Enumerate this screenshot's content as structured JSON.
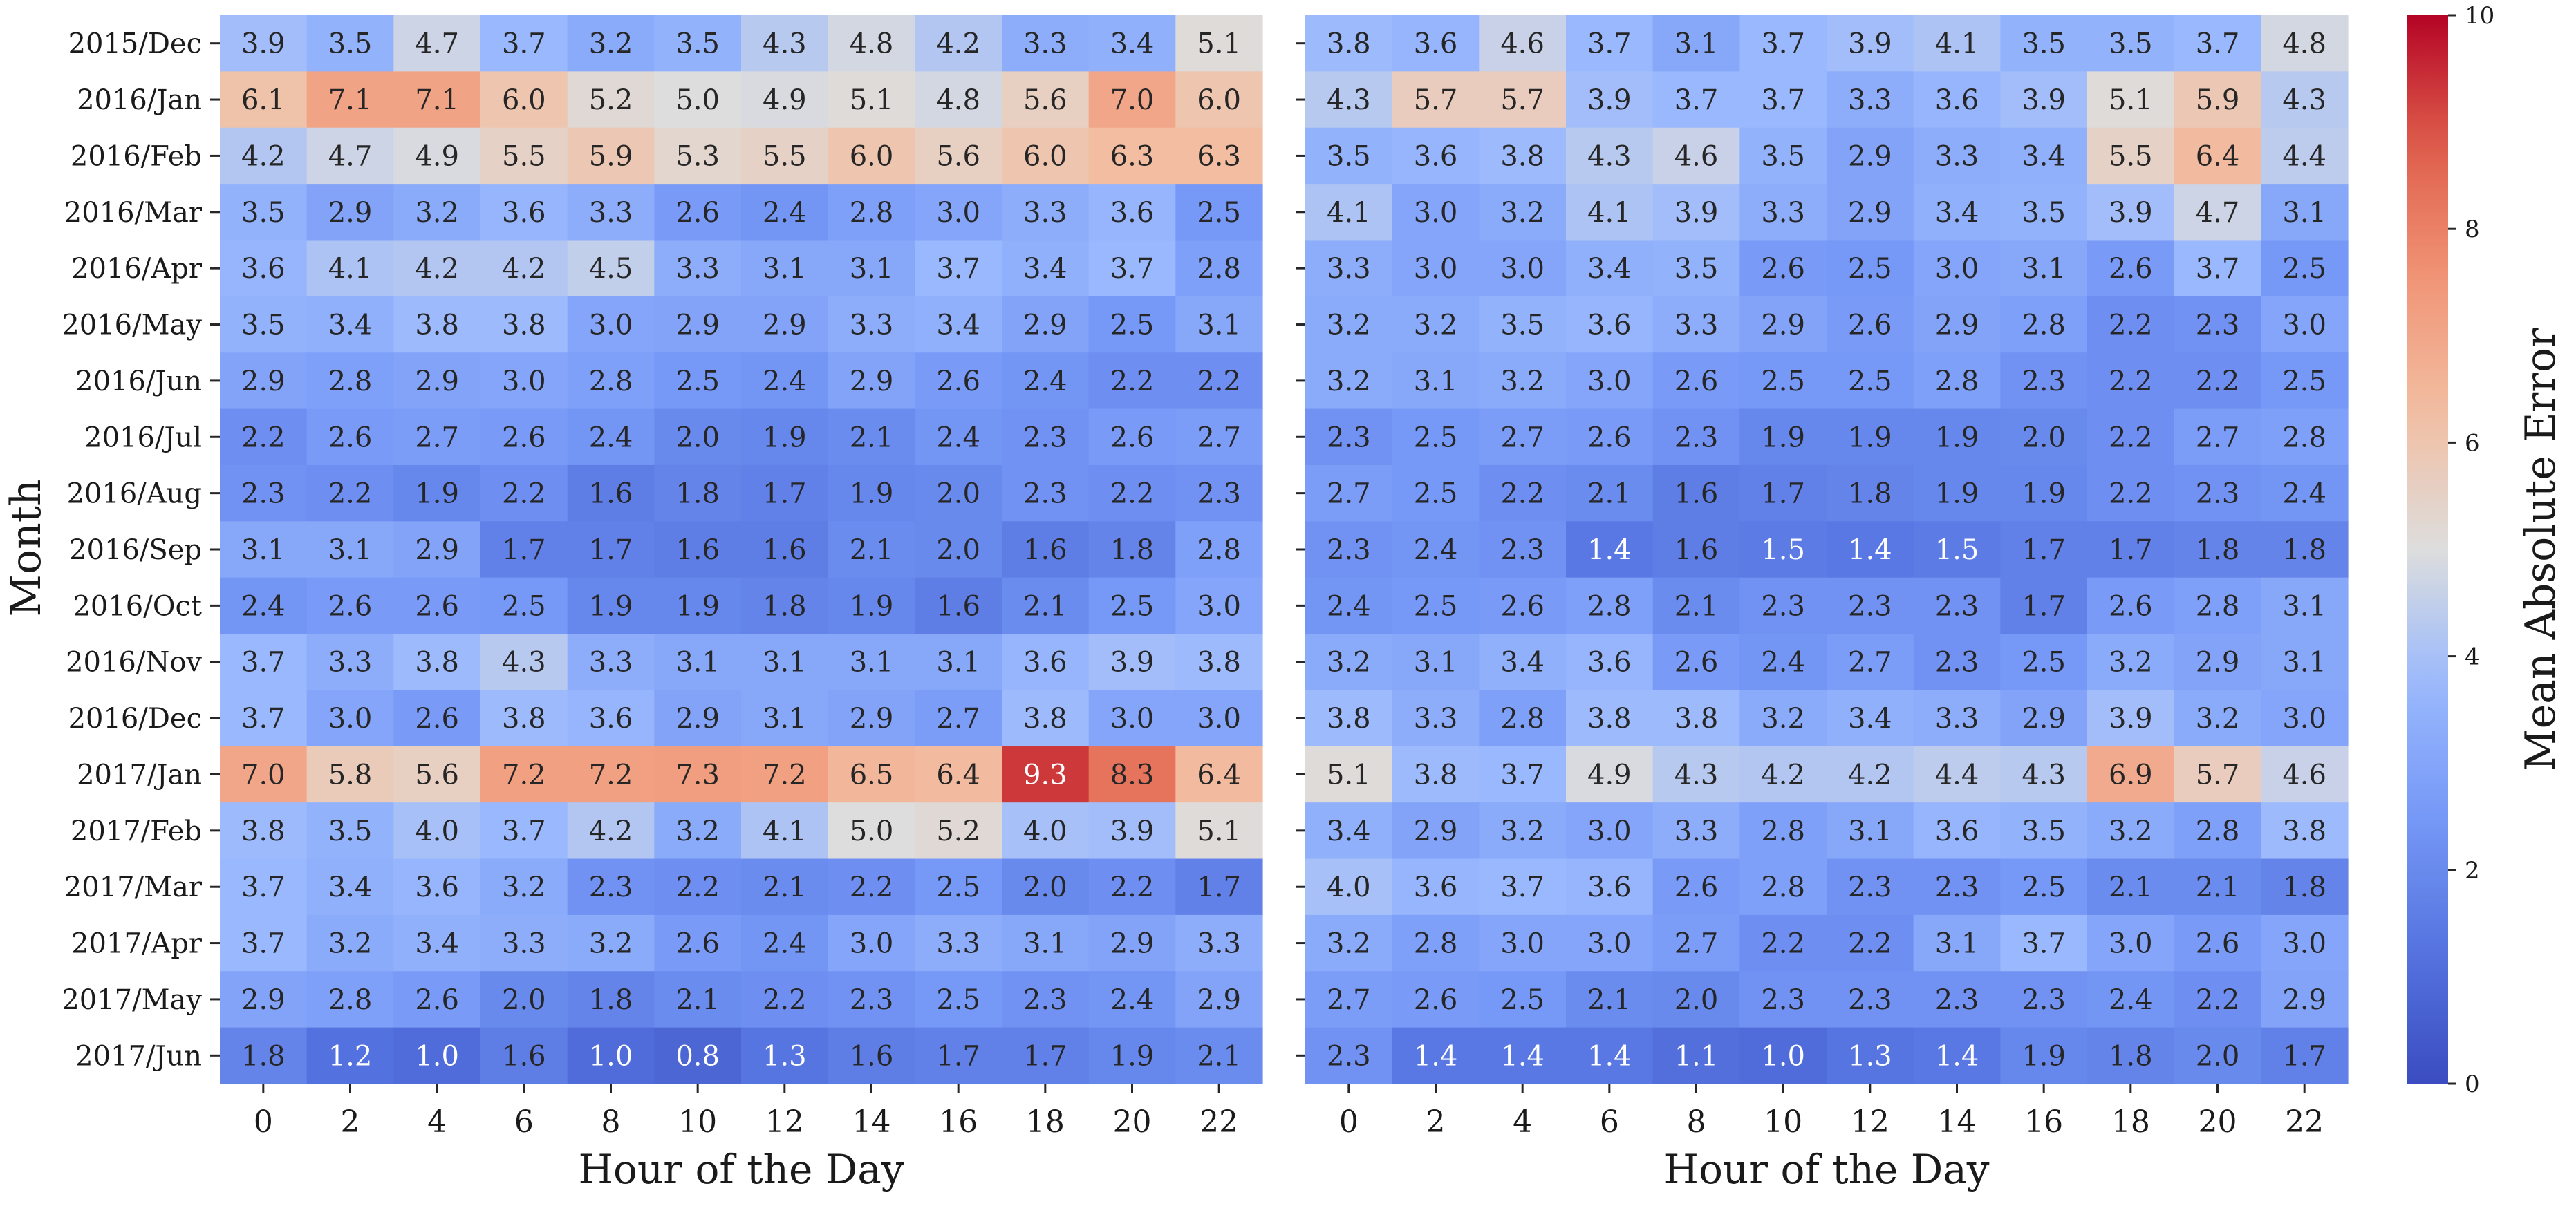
{
  "chart_data": {
    "type": "heatmap",
    "ylabel": "Month",
    "rows": [
      "2015/Dec",
      "2016/Jan",
      "2016/Feb",
      "2016/Mar",
      "2016/Apr",
      "2016/May",
      "2016/Jun",
      "2016/Jul",
      "2016/Aug",
      "2016/Sep",
      "2016/Oct",
      "2016/Nov",
      "2016/Dec",
      "2017/Jan",
      "2017/Feb",
      "2017/Mar",
      "2017/Apr",
      "2017/May",
      "2017/Jun"
    ],
    "columns": [
      "0",
      "2",
      "4",
      "6",
      "8",
      "10",
      "12",
      "14",
      "16",
      "18",
      "20",
      "22"
    ],
    "panels": [
      {
        "xlabel": "Hour of the Day",
        "values": [
          [
            3.9,
            3.5,
            4.7,
            3.7,
            3.2,
            3.5,
            4.3,
            4.8,
            4.2,
            3.3,
            3.4,
            5.1
          ],
          [
            6.1,
            7.1,
            7.1,
            6.0,
            5.2,
            5.0,
            4.9,
            5.1,
            4.8,
            5.6,
            7.0,
            6.0
          ],
          [
            4.2,
            4.7,
            4.9,
            5.5,
            5.9,
            5.3,
            5.5,
            6.0,
            5.6,
            6.0,
            6.3,
            6.3
          ],
          [
            3.5,
            2.9,
            3.2,
            3.6,
            3.3,
            2.6,
            2.4,
            2.8,
            3.0,
            3.3,
            3.6,
            2.5
          ],
          [
            3.6,
            4.1,
            4.2,
            4.2,
            4.5,
            3.3,
            3.1,
            3.1,
            3.7,
            3.4,
            3.7,
            2.8
          ],
          [
            3.5,
            3.4,
            3.8,
            3.8,
            3.0,
            2.9,
            2.9,
            3.3,
            3.4,
            2.9,
            2.5,
            3.1
          ],
          [
            2.9,
            2.8,
            2.9,
            3.0,
            2.8,
            2.5,
            2.4,
            2.9,
            2.6,
            2.4,
            2.2,
            2.2
          ],
          [
            2.2,
            2.6,
            2.7,
            2.6,
            2.4,
            2.0,
            1.9,
            2.1,
            2.4,
            2.3,
            2.6,
            2.7
          ],
          [
            2.3,
            2.2,
            1.9,
            2.2,
            1.6,
            1.8,
            1.7,
            1.9,
            2.0,
            2.3,
            2.2,
            2.3
          ],
          [
            3.1,
            3.1,
            2.9,
            1.7,
            1.7,
            1.6,
            1.6,
            2.1,
            2.0,
            1.6,
            1.8,
            2.8
          ],
          [
            2.4,
            2.6,
            2.6,
            2.5,
            1.9,
            1.9,
            1.8,
            1.9,
            1.6,
            2.1,
            2.5,
            3.0
          ],
          [
            3.7,
            3.3,
            3.8,
            4.3,
            3.3,
            3.1,
            3.1,
            3.1,
            3.1,
            3.6,
            3.9,
            3.8
          ],
          [
            3.7,
            3.0,
            2.6,
            3.8,
            3.6,
            2.9,
            3.1,
            2.9,
            2.7,
            3.8,
            3.0,
            3.0
          ],
          [
            7.0,
            5.8,
            5.6,
            7.2,
            7.2,
            7.3,
            7.2,
            6.5,
            6.4,
            9.3,
            8.3,
            6.4
          ],
          [
            3.8,
            3.5,
            4.0,
            3.7,
            4.2,
            3.2,
            4.1,
            5.0,
            5.2,
            4.0,
            3.9,
            5.1
          ],
          [
            3.7,
            3.4,
            3.6,
            3.2,
            2.3,
            2.2,
            2.1,
            2.2,
            2.5,
            2.0,
            2.2,
            1.7
          ],
          [
            3.7,
            3.2,
            3.4,
            3.3,
            3.2,
            2.6,
            2.4,
            3.0,
            3.3,
            3.1,
            2.9,
            3.3
          ],
          [
            2.9,
            2.8,
            2.6,
            2.0,
            1.8,
            2.1,
            2.2,
            2.3,
            2.5,
            2.3,
            2.4,
            2.9
          ],
          [
            1.8,
            1.2,
            1.0,
            1.6,
            1.0,
            0.8,
            1.3,
            1.6,
            1.7,
            1.7,
            1.9,
            2.1
          ]
        ]
      },
      {
        "xlabel": "Hour of the Day",
        "values": [
          [
            3.8,
            3.6,
            4.6,
            3.7,
            3.1,
            3.7,
            3.9,
            4.1,
            3.5,
            3.5,
            3.7,
            4.8
          ],
          [
            4.3,
            5.7,
            5.7,
            3.9,
            3.7,
            3.7,
            3.3,
            3.6,
            3.9,
            5.1,
            5.9,
            4.3
          ],
          [
            3.5,
            3.6,
            3.8,
            4.3,
            4.6,
            3.5,
            2.9,
            3.3,
            3.4,
            5.5,
            6.4,
            4.4
          ],
          [
            4.1,
            3.0,
            3.2,
            4.1,
            3.9,
            3.3,
            2.9,
            3.4,
            3.5,
            3.9,
            4.7,
            3.1
          ],
          [
            3.3,
            3.0,
            3.0,
            3.4,
            3.5,
            2.6,
            2.5,
            3.0,
            3.1,
            2.6,
            3.7,
            2.5
          ],
          [
            3.2,
            3.2,
            3.5,
            3.6,
            3.3,
            2.9,
            2.6,
            2.9,
            2.8,
            2.2,
            2.3,
            3.0
          ],
          [
            3.2,
            3.1,
            3.2,
            3.0,
            2.6,
            2.5,
            2.5,
            2.8,
            2.3,
            2.2,
            2.2,
            2.5
          ],
          [
            2.3,
            2.5,
            2.7,
            2.6,
            2.3,
            1.9,
            1.9,
            1.9,
            2.0,
            2.2,
            2.7,
            2.8
          ],
          [
            2.7,
            2.5,
            2.2,
            2.1,
            1.6,
            1.7,
            1.8,
            1.9,
            1.9,
            2.2,
            2.3,
            2.4
          ],
          [
            2.3,
            2.4,
            2.3,
            1.4,
            1.6,
            1.5,
            1.4,
            1.5,
            1.7,
            1.7,
            1.8,
            1.8
          ],
          [
            2.4,
            2.5,
            2.6,
            2.8,
            2.1,
            2.3,
            2.3,
            2.3,
            1.7,
            2.6,
            2.8,
            3.1
          ],
          [
            3.2,
            3.1,
            3.4,
            3.6,
            2.6,
            2.4,
            2.7,
            2.3,
            2.5,
            3.2,
            2.9,
            3.1
          ],
          [
            3.8,
            3.3,
            2.8,
            3.8,
            3.8,
            3.2,
            3.4,
            3.3,
            2.9,
            3.9,
            3.2,
            3.0
          ],
          [
            5.1,
            3.8,
            3.7,
            4.9,
            4.3,
            4.2,
            4.2,
            4.4,
            4.3,
            6.9,
            5.7,
            4.6
          ],
          [
            3.4,
            2.9,
            3.2,
            3.0,
            3.3,
            2.8,
            3.1,
            3.6,
            3.5,
            3.2,
            2.8,
            3.8
          ],
          [
            4.0,
            3.6,
            3.7,
            3.6,
            2.6,
            2.8,
            2.3,
            2.3,
            2.5,
            2.1,
            2.1,
            1.8
          ],
          [
            3.2,
            2.8,
            3.0,
            3.0,
            2.7,
            2.2,
            2.2,
            3.1,
            3.7,
            3.0,
            2.6,
            3.0
          ],
          [
            2.7,
            2.6,
            2.5,
            2.1,
            2.0,
            2.3,
            2.3,
            2.3,
            2.3,
            2.4,
            2.2,
            2.9
          ],
          [
            2.3,
            1.4,
            1.4,
            1.4,
            1.1,
            1.0,
            1.3,
            1.4,
            1.9,
            1.8,
            2.0,
            1.7
          ]
        ]
      }
    ],
    "colorbar": {
      "label": "Mean Absolute Error",
      "colormap": "coolwarm",
      "vmin": 0,
      "vmax": 10,
      "ticks": [
        "0",
        "2",
        "4",
        "6",
        "8",
        "10"
      ]
    }
  }
}
